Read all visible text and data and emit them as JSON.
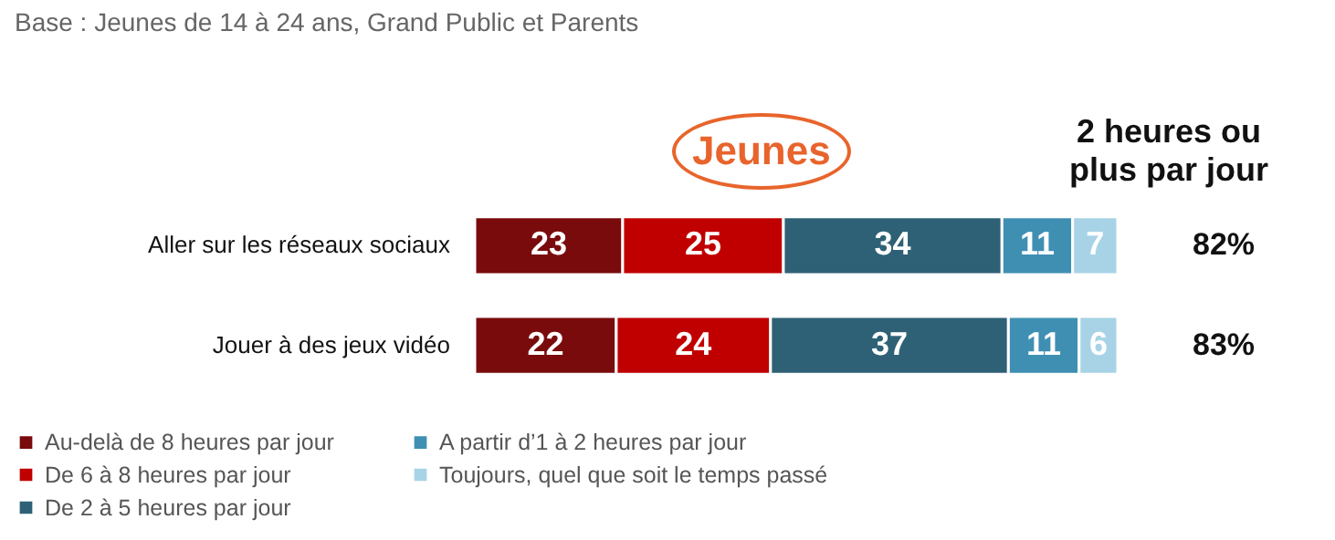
{
  "chart_data": {
    "type": "bar",
    "orientation": "horizontal",
    "stacked": true,
    "title": "Jeunes",
    "subtitle": "Base : Jeunes de 14 à 24 ans, Grand Public et Parents",
    "categories": [
      "Aller sur les réseaux sociaux",
      "Jouer à des jeux vidéo"
    ],
    "series": [
      {
        "name": "Au-delà de 8 heures par jour",
        "color": "#7a0b0d",
        "values": [
          23,
          22
        ]
      },
      {
        "name": "De 6 à 8 heures par jour",
        "color": "#c00000",
        "values": [
          25,
          24
        ]
      },
      {
        "name": "De 2 à 5 heures par jour",
        "color": "#2e6175",
        "values": [
          34,
          37
        ]
      },
      {
        "name": "A partir d’1 à 2 heures par jour",
        "color": "#3f8fb3",
        "values": [
          11,
          11
        ]
      },
      {
        "name": "Toujours, quel que soit le temps passé",
        "color": "#a8d3e6",
        "values": [
          7,
          6
        ]
      }
    ],
    "data_labels": true,
    "annotations": [
      "2 heures ou plus par jour",
      "82%",
      "83%"
    ],
    "legend": "bottom"
  }
}
